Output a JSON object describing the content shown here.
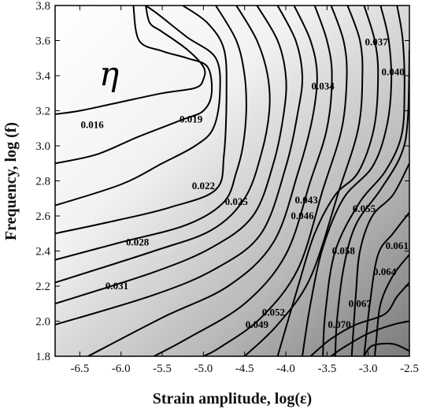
{
  "chart_data": {
    "type": "contour",
    "title": "",
    "symbol": "η",
    "xlabel": "Strain amplitude, log(ε)",
    "ylabel": "Frequency, log (f)",
    "xlim": [
      -6.8,
      -2.5
    ],
    "ylim": [
      1.8,
      3.8
    ],
    "xticks": [
      "-6.5",
      "-6.0",
      "-5.5",
      "-5.0",
      "-4.5",
      "-4.0",
      "-3.5",
      "-3.0",
      "-2.5"
    ],
    "yticks": [
      "1.8",
      "2.0",
      "2.2",
      "2.4",
      "2.6",
      "2.8",
      "3.0",
      "3.2",
      "3.4",
      "3.6",
      "3.8"
    ],
    "grid": false,
    "colormap": {
      "low": "#ffffff",
      "high": "#7a7a7a"
    },
    "contour_labels": [
      {
        "text": "0.016",
        "x": -6.35,
        "y": 3.12
      },
      {
        "text": "0.019",
        "x": -5.15,
        "y": 3.15
      },
      {
        "text": "0.022",
        "x": -5.0,
        "y": 2.77
      },
      {
        "text": "0.025",
        "x": -4.6,
        "y": 2.68
      },
      {
        "text": "0.028",
        "x": -5.8,
        "y": 2.45
      },
      {
        "text": "0.031",
        "x": -6.05,
        "y": 2.2
      },
      {
        "text": "0.034",
        "x": -3.55,
        "y": 3.34
      },
      {
        "text": "0.037",
        "x": -2.9,
        "y": 3.59
      },
      {
        "text": "0.040",
        "x": -2.7,
        "y": 3.42
      },
      {
        "text": "0.043",
        "x": -3.75,
        "y": 2.69
      },
      {
        "text": "0.046",
        "x": -3.8,
        "y": 2.6
      },
      {
        "text": "0.049",
        "x": -4.35,
        "y": 1.98
      },
      {
        "text": "0.052",
        "x": -4.15,
        "y": 2.05
      },
      {
        "text": "0.055",
        "x": -3.05,
        "y": 2.64
      },
      {
        "text": "0.058",
        "x": -3.3,
        "y": 2.4
      },
      {
        "text": "0.061",
        "x": -2.65,
        "y": 2.43
      },
      {
        "text": "0.064",
        "x": -2.8,
        "y": 2.28
      },
      {
        "text": "0.067",
        "x": -3.1,
        "y": 2.1
      },
      {
        "text": "0.070",
        "x": -3.35,
        "y": 1.98
      }
    ],
    "contours": [
      [
        [
          -5.7,
          3.8
        ],
        [
          -5.65,
          3.7
        ],
        [
          -5.5,
          3.65
        ],
        [
          -5.2,
          3.55
        ],
        [
          -5.0,
          3.45
        ],
        [
          -5.0,
          3.38
        ],
        [
          -5.1,
          3.33
        ],
        [
          -5.5,
          3.3
        ],
        [
          -6.0,
          3.25
        ],
        [
          -6.5,
          3.2
        ],
        [
          -6.8,
          3.18
        ]
      ],
      [
        [
          -5.85,
          3.8
        ],
        [
          -5.78,
          3.6
        ],
        [
          -5.5,
          3.54
        ],
        [
          -5.2,
          3.5
        ],
        [
          -4.95,
          3.45
        ],
        [
          -4.9,
          3.3
        ],
        [
          -5.0,
          3.2
        ],
        [
          -5.25,
          3.15
        ],
        [
          -5.8,
          3.05
        ],
        [
          -6.3,
          2.95
        ],
        [
          -6.8,
          2.9
        ]
      ],
      [
        [
          -5.7,
          3.8
        ],
        [
          -5.55,
          3.75
        ],
        [
          -5.2,
          3.62
        ],
        [
          -4.85,
          3.5
        ],
        [
          -4.8,
          3.3
        ],
        [
          -4.88,
          3.1
        ],
        [
          -5.1,
          3.0
        ],
        [
          -5.5,
          2.9
        ],
        [
          -6.0,
          2.78
        ],
        [
          -6.8,
          2.66
        ]
      ],
      [
        [
          -5.25,
          3.8
        ],
        [
          -4.95,
          3.7
        ],
        [
          -4.75,
          3.55
        ],
        [
          -4.72,
          3.3
        ],
        [
          -4.75,
          2.95
        ],
        [
          -4.85,
          2.75
        ],
        [
          -5.4,
          2.65
        ],
        [
          -6.0,
          2.58
        ],
        [
          -6.8,
          2.5
        ]
      ],
      [
        [
          -4.85,
          3.8
        ],
        [
          -4.6,
          3.6
        ],
        [
          -4.5,
          3.4
        ],
        [
          -4.48,
          3.2
        ],
        [
          -4.52,
          3.0
        ],
        [
          -4.6,
          2.85
        ],
        [
          -4.75,
          2.68
        ],
        [
          -5.2,
          2.55
        ],
        [
          -6.0,
          2.45
        ],
        [
          -6.8,
          2.35
        ]
      ],
      [
        [
          -4.6,
          3.8
        ],
        [
          -4.35,
          3.6
        ],
        [
          -4.22,
          3.4
        ],
        [
          -4.2,
          3.2
        ],
        [
          -4.3,
          2.95
        ],
        [
          -4.5,
          2.7
        ],
        [
          -4.9,
          2.52
        ],
        [
          -5.6,
          2.4
        ],
        [
          -6.8,
          2.22
        ]
      ],
      [
        [
          -4.35,
          3.8
        ],
        [
          -4.1,
          3.6
        ],
        [
          -4.0,
          3.4
        ],
        [
          -4.02,
          3.2
        ],
        [
          -4.15,
          2.9
        ],
        [
          -4.4,
          2.6
        ],
        [
          -4.9,
          2.42
        ],
        [
          -5.6,
          2.28
        ],
        [
          -6.8,
          2.1
        ]
      ],
      [
        [
          -4.1,
          3.8
        ],
        [
          -3.88,
          3.6
        ],
        [
          -3.8,
          3.4
        ],
        [
          -3.85,
          3.2
        ],
        [
          -4.0,
          2.88
        ],
        [
          -4.3,
          2.5
        ],
        [
          -4.85,
          2.3
        ],
        [
          -5.6,
          2.15
        ],
        [
          -6.8,
          1.98
        ]
      ],
      [
        [
          -3.9,
          3.8
        ],
        [
          -3.7,
          3.6
        ],
        [
          -3.62,
          3.4
        ],
        [
          -3.68,
          3.15
        ],
        [
          -3.85,
          2.85
        ],
        [
          -4.15,
          2.45
        ],
        [
          -4.7,
          2.2
        ],
        [
          -5.5,
          2.02
        ],
        [
          -6.4,
          1.8
        ]
      ],
      [
        [
          -3.65,
          3.8
        ],
        [
          -3.5,
          3.6
        ],
        [
          -3.44,
          3.4
        ],
        [
          -3.5,
          3.1
        ],
        [
          -3.7,
          2.8
        ],
        [
          -4.0,
          2.38
        ],
        [
          -4.5,
          2.1
        ],
        [
          -5.2,
          1.9
        ],
        [
          -5.6,
          1.8
        ]
      ],
      [
        [
          -3.45,
          3.8
        ],
        [
          -3.3,
          3.6
        ],
        [
          -3.26,
          3.4
        ],
        [
          -3.32,
          3.1
        ],
        [
          -3.55,
          2.75
        ],
        [
          -3.85,
          2.3
        ],
        [
          -4.3,
          2.02
        ],
        [
          -4.8,
          1.85
        ],
        [
          -5.0,
          1.8
        ]
      ],
      [
        [
          -3.25,
          3.8
        ],
        [
          -3.1,
          3.6
        ],
        [
          -3.07,
          3.4
        ],
        [
          -3.12,
          3.1
        ],
        [
          -3.35,
          2.75
        ],
        [
          -3.7,
          2.25
        ],
        [
          -4.1,
          1.98
        ],
        [
          -4.5,
          1.8
        ]
      ],
      [
        [
          -3.05,
          3.8
        ],
        [
          -2.92,
          3.6
        ],
        [
          -2.88,
          3.4
        ],
        [
          -2.93,
          3.1
        ],
        [
          -3.12,
          2.85
        ],
        [
          -3.4,
          2.72
        ],
        [
          -3.65,
          2.5
        ],
        [
          -3.85,
          2.2
        ],
        [
          -4.1,
          1.8
        ]
      ],
      [
        [
          -2.85,
          3.8
        ],
        [
          -2.75,
          3.6
        ],
        [
          -2.72,
          3.35
        ],
        [
          -2.78,
          3.1
        ],
        [
          -2.95,
          2.88
        ],
        [
          -3.3,
          2.7
        ],
        [
          -3.55,
          2.42
        ],
        [
          -3.7,
          2.1
        ],
        [
          -3.8,
          1.8
        ]
      ],
      [
        [
          -2.65,
          3.8
        ],
        [
          -2.58,
          3.6
        ],
        [
          -2.56,
          3.3
        ],
        [
          -2.6,
          3.05
        ],
        [
          -2.8,
          2.85
        ],
        [
          -3.1,
          2.68
        ],
        [
          -3.4,
          2.4
        ],
        [
          -3.52,
          2.05
        ],
        [
          -3.55,
          1.8
        ]
      ],
      [
        [
          -2.5,
          3.55
        ],
        [
          -2.52,
          3.15
        ],
        [
          -2.6,
          2.95
        ],
        [
          -2.85,
          2.75
        ],
        [
          -3.15,
          2.55
        ],
        [
          -3.3,
          2.3
        ],
        [
          -3.38,
          2.0
        ],
        [
          -3.4,
          1.8
        ]
      ],
      [
        [
          -2.5,
          2.9
        ],
        [
          -2.7,
          2.72
        ],
        [
          -2.95,
          2.6
        ],
        [
          -3.1,
          2.4
        ],
        [
          -3.15,
          2.15
        ],
        [
          -3.2,
          1.8
        ]
      ],
      [
        [
          -2.5,
          2.62
        ],
        [
          -2.7,
          2.5
        ],
        [
          -2.88,
          2.38
        ],
        [
          -2.98,
          2.1
        ],
        [
          -3.05,
          1.8
        ]
      ],
      [
        [
          -2.5,
          2.38
        ],
        [
          -2.7,
          2.26
        ],
        [
          -2.85,
          2.1
        ],
        [
          -2.9,
          1.9
        ],
        [
          -2.92,
          1.8
        ]
      ],
      [
        [
          -2.5,
          2.22
        ],
        [
          -2.65,
          2.14
        ],
        [
          -2.8,
          2.04
        ],
        [
          -3.15,
          1.98
        ],
        [
          -3.45,
          1.9
        ],
        [
          -3.7,
          1.8
        ]
      ],
      [
        [
          -2.5,
          2.0
        ],
        [
          -2.7,
          1.98
        ],
        [
          -3.0,
          1.93
        ],
        [
          -3.3,
          1.85
        ],
        [
          -3.45,
          1.8
        ]
      ],
      [
        [
          -2.5,
          1.83
        ],
        [
          -2.7,
          1.87
        ],
        [
          -2.95,
          1.86
        ],
        [
          -3.05,
          1.8
        ]
      ]
    ]
  }
}
